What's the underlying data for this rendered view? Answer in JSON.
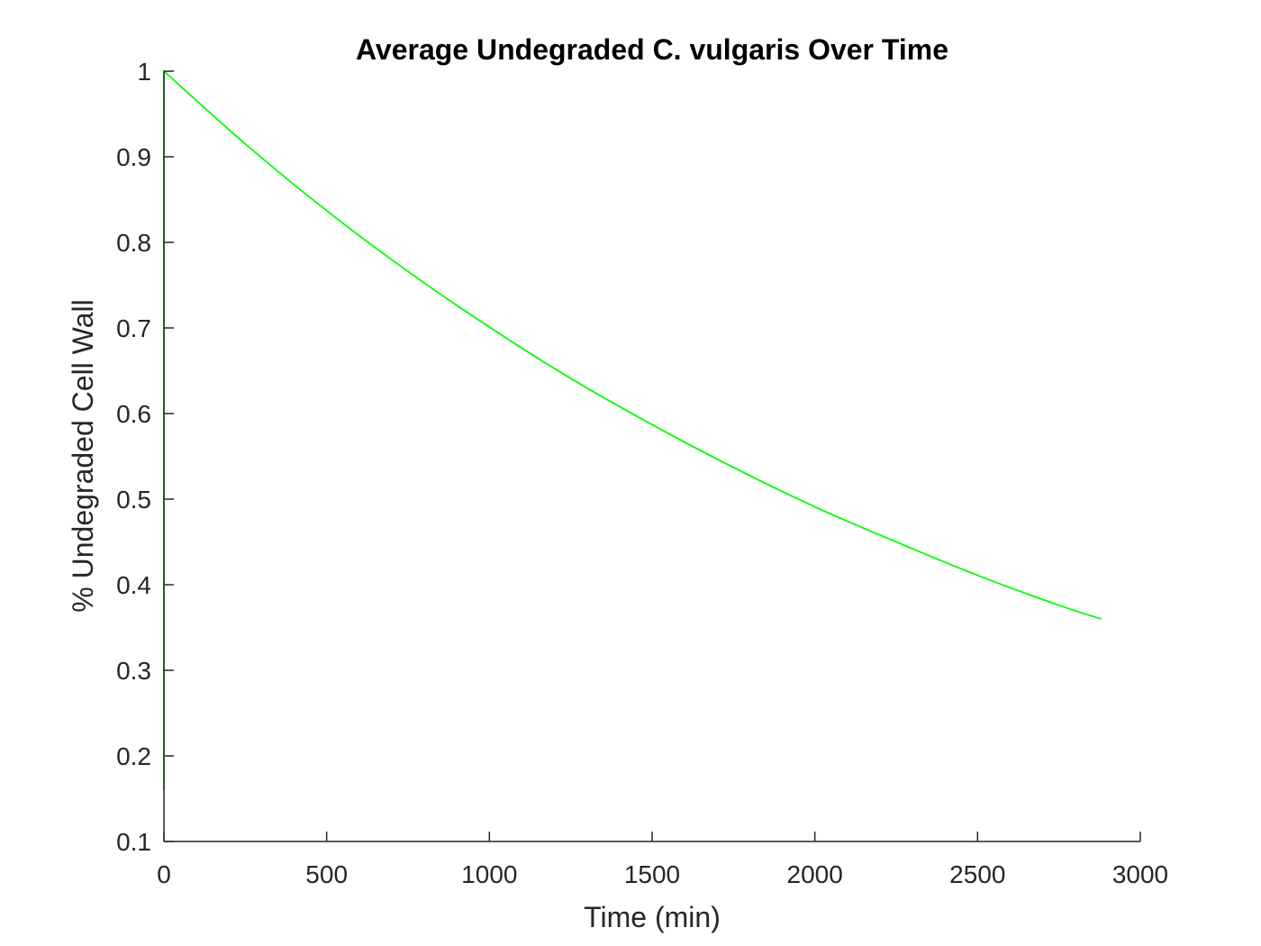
{
  "chart_data": {
    "type": "line",
    "title": "Average Undegraded C. vulgaris Over Time",
    "xlabel": "Time (min)",
    "ylabel": "% Undegraded Cell Wall",
    "xlim": [
      0,
      3000
    ],
    "ylim": [
      0.1,
      1
    ],
    "xticks": [
      0,
      500,
      1000,
      1500,
      2000,
      2500,
      3000
    ],
    "xtick_labels": [
      "0",
      "500",
      "1000",
      "1500",
      "2000",
      "2500",
      "3000"
    ],
    "yticks": [
      0.1,
      0.2,
      0.3,
      0.4,
      0.5,
      0.6,
      0.7,
      0.8,
      0.9,
      1
    ],
    "ytick_labels": [
      "0.1",
      "0.2",
      "0.3",
      "0.4",
      "0.5",
      "0.6",
      "0.7",
      "0.8",
      "0.9",
      "1"
    ],
    "grid": false,
    "series": [
      {
        "color": "#00ff00",
        "x": [
          0,
          0,
          0,
          0,
          0,
          0,
          250,
          500,
          750,
          1000,
          1250,
          1500,
          1750,
          2000,
          2250,
          2500,
          2750,
          2880
        ],
        "y": [
          0.16,
          0.3,
          0.5,
          0.7,
          0.9,
          1.0,
          0.915,
          0.837,
          0.766,
          0.701,
          0.641,
          0.587,
          0.537,
          0.491,
          0.45,
          0.411,
          0.376,
          0.36
        ]
      }
    ]
  }
}
